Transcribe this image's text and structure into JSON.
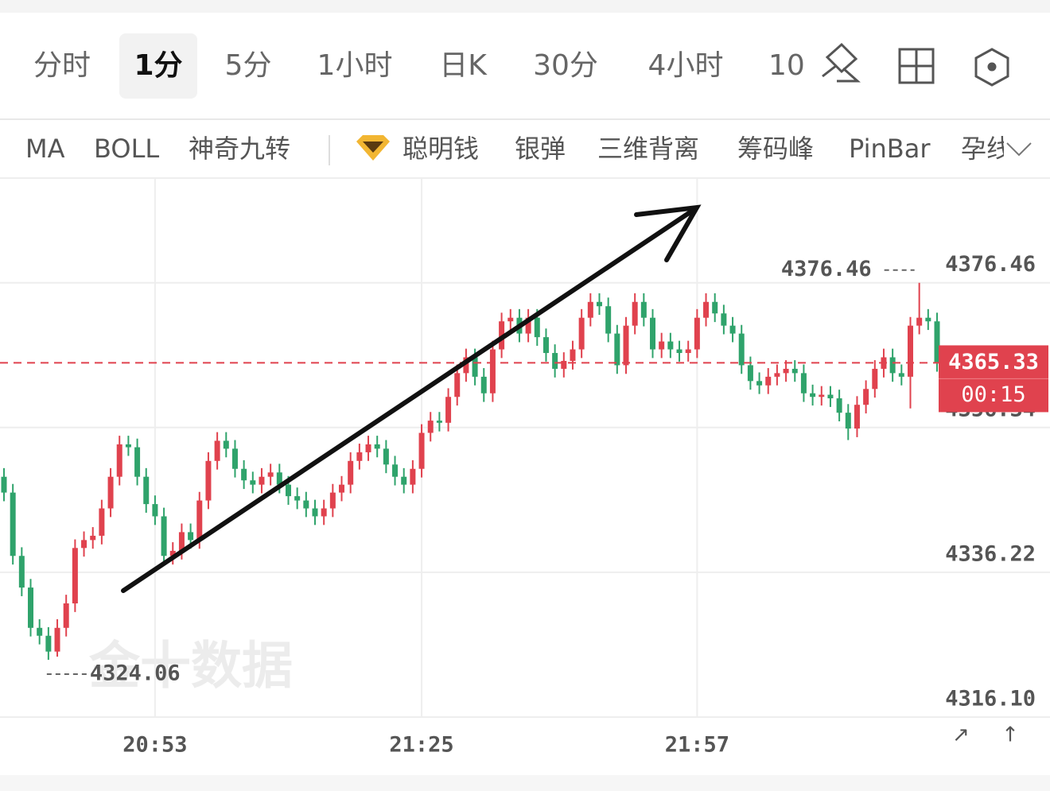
{
  "tabs": [
    "分时",
    "1分",
    "5分",
    "1小时",
    "日K",
    "30分",
    "4小时",
    "10"
  ],
  "indicators": [
    "MA",
    "BOLL",
    "神奇九转",
    "聪明钱",
    "银弹",
    "三维背离",
    "筹码峰",
    "PinBar",
    "孕线"
  ],
  "watermark": "金十数据",
  "chart_data": {
    "type": "candlestick",
    "up_color": "#e0424e",
    "down_color": "#2fa36b",
    "timer": "00:15",
    "ylim": [
      4316.1,
      4390.9
    ],
    "yticks": [
      4376.46,
      4356.34,
      4336.22,
      {
        "value": 4316.1,
        "label": "4316.10"
      }
    ],
    "grid": true,
    "categories": [
      null,
      null,
      null,
      null,
      null,
      null,
      null,
      null,
      null,
      null,
      null,
      null,
      null,
      null,
      null,
      null,
      null,
      "20:53",
      null,
      null,
      null,
      null,
      null,
      null,
      null,
      null,
      null,
      null,
      null,
      null,
      null,
      null,
      null,
      null,
      null,
      null,
      null,
      null,
      null,
      null,
      null,
      null,
      null,
      null,
      null,
      null,
      null,
      "21:25",
      null,
      null,
      null,
      null,
      null,
      null,
      null,
      null,
      null,
      null,
      null,
      null,
      null,
      null,
      null,
      null,
      null,
      null,
      null,
      null,
      null,
      null,
      null,
      null,
      null,
      null,
      null,
      null,
      null,
      null,
      "21:57",
      null,
      null,
      null,
      null,
      null,
      null,
      null,
      null,
      null,
      null,
      null,
      null,
      null,
      null,
      null,
      null,
      null,
      null,
      null,
      null,
      null,
      null,
      null,
      null,
      null,
      null,
      null
    ],
    "candles": [
      [
        4349.5,
        4350.7,
        4346.1,
        4347.3
      ],
      [
        4347.3,
        4348.5,
        4337.3,
        4338.5
      ],
      [
        4338.5,
        4339.7,
        4332.9,
        4334.1
      ],
      [
        4334.1,
        4335.3,
        4327.3,
        4328.5
      ],
      [
        4328.5,
        4329.7,
        4326.2,
        4327.4
      ],
      [
        4327.4,
        4328.6,
        4324.06,
        4325.2
      ],
      [
        4325.2,
        4329.7,
        4324.5,
        4328.5
      ],
      [
        4328.5,
        4333.1,
        4327.3,
        4331.9
      ],
      [
        4331.9,
        4340.8,
        4330.7,
        4339.6
      ],
      [
        4339.6,
        4341.9,
        4338.4,
        4340.7
      ],
      [
        4340.7,
        4342.5,
        4339.5,
        4341.3
      ],
      [
        4341.3,
        4346.3,
        4340.1,
        4345.1
      ],
      [
        4345.1,
        4350.7,
        4343.9,
        4349.5
      ],
      [
        4349.5,
        4355.2,
        4348.3,
        4354.0
      ],
      [
        4354.0,
        4355.2,
        4352.4,
        4353.6
      ],
      [
        4353.6,
        4354.8,
        4348.3,
        4349.5
      ],
      [
        4349.5,
        4350.7,
        4344.5,
        4345.7
      ],
      [
        4345.7,
        4346.9,
        4342.8,
        4344.0
      ],
      [
        4344.0,
        4345.2,
        4337.3,
        4338.5
      ],
      [
        4338.5,
        4340.4,
        4337.3,
        4339.2
      ],
      [
        4339.2,
        4343.0,
        4338.0,
        4341.8
      ],
      [
        4341.8,
        4343.0,
        4339.5,
        4340.7
      ],
      [
        4340.7,
        4347.4,
        4339.5,
        4346.2
      ],
      [
        4346.2,
        4352.9,
        4345.0,
        4351.7
      ],
      [
        4351.7,
        4355.7,
        4350.5,
        4354.5
      ],
      [
        4354.5,
        4355.7,
        4352.2,
        4353.4
      ],
      [
        4353.4,
        4354.6,
        4349.4,
        4350.6
      ],
      [
        4350.6,
        4351.8,
        4347.8,
        4349.0
      ],
      [
        4349.0,
        4350.2,
        4347.2,
        4348.4
      ],
      [
        4348.4,
        4350.7,
        4347.2,
        4349.5
      ],
      [
        4349.5,
        4351.3,
        4348.3,
        4350.1
      ],
      [
        4350.1,
        4351.3,
        4347.2,
        4348.4
      ],
      [
        4348.4,
        4349.6,
        4345.6,
        4346.8
      ],
      [
        4346.8,
        4348.0,
        4345.0,
        4346.2
      ],
      [
        4346.2,
        4347.4,
        4343.9,
        4345.1
      ],
      [
        4345.1,
        4346.3,
        4342.8,
        4344.0
      ],
      [
        4344.0,
        4346.3,
        4342.8,
        4345.1
      ],
      [
        4345.1,
        4348.5,
        4343.9,
        4347.3
      ],
      [
        4347.3,
        4349.6,
        4346.1,
        4348.4
      ],
      [
        4348.4,
        4352.9,
        4347.2,
        4351.7
      ],
      [
        4351.7,
        4354.1,
        4350.5,
        4352.9
      ],
      [
        4352.9,
        4355.2,
        4351.7,
        4354.0
      ],
      [
        4354.0,
        4355.2,
        4352.2,
        4353.4
      ],
      [
        4353.4,
        4354.6,
        4350.0,
        4351.2
      ],
      [
        4351.2,
        4352.4,
        4348.3,
        4349.5
      ],
      [
        4349.5,
        4350.7,
        4347.2,
        4348.4
      ],
      [
        4348.4,
        4351.8,
        4347.2,
        4350.6
      ],
      [
        4350.6,
        4356.8,
        4349.4,
        4355.6
      ],
      [
        4355.6,
        4358.5,
        4354.4,
        4357.3
      ],
      [
        4357.3,
        4358.5,
        4355.8,
        4357.0
      ],
      [
        4357.0,
        4361.8,
        4355.8,
        4360.6
      ],
      [
        4360.6,
        4365.1,
        4359.4,
        4363.9
      ],
      [
        4363.9,
        4367.3,
        4362.7,
        4366.1
      ],
      [
        4366.1,
        4367.3,
        4362.2,
        4363.4
      ],
      [
        4363.4,
        4364.6,
        4359.9,
        4361.1
      ],
      [
        4361.1,
        4368.4,
        4359.9,
        4367.2
      ],
      [
        4367.2,
        4372.3,
        4366.0,
        4371.1
      ],
      [
        4371.1,
        4372.8,
        4369.9,
        4371.6
      ],
      [
        4371.6,
        4372.8,
        4368.2,
        4369.4
      ],
      [
        4369.4,
        4372.8,
        4368.2,
        4371.6
      ],
      [
        4371.6,
        4372.8,
        4367.7,
        4368.9
      ],
      [
        4368.9,
        4370.1,
        4365.5,
        4366.7
      ],
      [
        4366.7,
        4367.9,
        4363.3,
        4364.5
      ],
      [
        4364.5,
        4366.8,
        4363.3,
        4365.6
      ],
      [
        4365.6,
        4368.4,
        4364.4,
        4367.2
      ],
      [
        4367.2,
        4372.8,
        4366.0,
        4371.6
      ],
      [
        4371.6,
        4375.0,
        4370.4,
        4373.8
      ],
      [
        4373.8,
        4375.0,
        4372.0,
        4373.2
      ],
      [
        4373.2,
        4374.4,
        4368.2,
        4369.4
      ],
      [
        4369.4,
        4370.6,
        4363.8,
        4365.0
      ],
      [
        4365.0,
        4371.7,
        4363.8,
        4370.5
      ],
      [
        4370.5,
        4375.0,
        4369.3,
        4373.8
      ],
      [
        4373.8,
        4375.0,
        4370.4,
        4371.6
      ],
      [
        4371.6,
        4372.8,
        4366.0,
        4367.2
      ],
      [
        4367.2,
        4369.5,
        4366.0,
        4368.3
      ],
      [
        4368.3,
        4369.5,
        4366.0,
        4367.2
      ],
      [
        4367.2,
        4368.4,
        4365.5,
        4366.7
      ],
      [
        4366.7,
        4368.4,
        4365.5,
        4367.2
      ],
      [
        4367.2,
        4372.8,
        4366.0,
        4371.6
      ],
      [
        4371.6,
        4375.0,
        4370.4,
        4373.8
      ],
      [
        4373.8,
        4375.0,
        4371.0,
        4372.2
      ],
      [
        4372.2,
        4373.4,
        4369.3,
        4370.5
      ],
      [
        4370.5,
        4371.7,
        4368.2,
        4369.4
      ],
      [
        4369.4,
        4370.6,
        4363.8,
        4365.0
      ],
      [
        4365.0,
        4366.2,
        4361.6,
        4362.8
      ],
      [
        4362.8,
        4364.0,
        4361.0,
        4362.2
      ],
      [
        4362.2,
        4364.6,
        4361.0,
        4363.4
      ],
      [
        4363.4,
        4365.1,
        4362.2,
        4363.9
      ],
      [
        4363.9,
        4365.7,
        4362.7,
        4364.5
      ],
      [
        4364.5,
        4365.7,
        4362.7,
        4363.9
      ],
      [
        4363.9,
        4365.1,
        4359.9,
        4361.1
      ],
      [
        4361.1,
        4362.3,
        4359.4,
        4360.6
      ],
      [
        4360.6,
        4362.1,
        4359.4,
        4360.9
      ],
      [
        4360.9,
        4362.1,
        4359.2,
        4360.4
      ],
      [
        4360.4,
        4361.6,
        4357.2,
        4358.4
      ],
      [
        4358.4,
        4359.6,
        4354.6,
        4356.2
      ],
      [
        4356.2,
        4360.7,
        4355.0,
        4359.5
      ],
      [
        4359.5,
        4362.9,
        4358.3,
        4361.7
      ],
      [
        4361.7,
        4365.7,
        4360.5,
        4364.5
      ],
      [
        4364.5,
        4367.3,
        4363.3,
        4366.1
      ],
      [
        4366.1,
        4367.3,
        4362.7,
        4363.9
      ],
      [
        4363.9,
        4365.1,
        4362.2,
        4363.4
      ],
      [
        4363.4,
        4371.7,
        4359.0,
        4370.5
      ],
      [
        4370.5,
        4376.46,
        4369.3,
        4371.6
      ],
      [
        4371.6,
        4372.8,
        4369.9,
        4371.1
      ],
      [
        4371.1,
        4372.3,
        4364.1,
        4365.33
      ]
    ]
  }
}
